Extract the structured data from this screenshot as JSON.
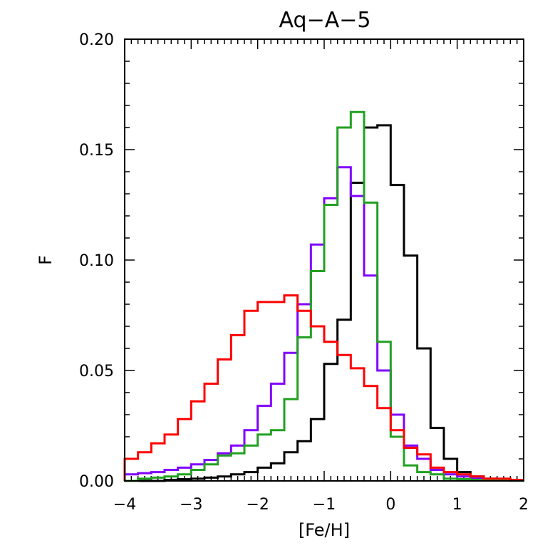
{
  "chart_data": {
    "type": "histogram",
    "title": "Aq−A−5",
    "xlabel": "[Fe/H]",
    "ylabel": "F",
    "xlim": [
      -4,
      2
    ],
    "ylim": [
      0,
      0.2
    ],
    "x_ticks": [
      -4,
      -3,
      -2,
      -1,
      0,
      1,
      2
    ],
    "x_tick_labels": [
      "−4",
      "−3",
      "−2",
      "−1",
      "0",
      "1",
      "2"
    ],
    "y_ticks": [
      0,
      0.05,
      0.1,
      0.15,
      0.2
    ],
    "y_tick_labels": [
      "0.00",
      "0.05",
      "0.10",
      "0.15",
      "0.20"
    ],
    "x_minor_step": 0.1,
    "y_minor_step": 0.01,
    "bin_edges": [
      -4.0,
      -3.8,
      -3.6,
      -3.4,
      -3.2,
      -3.0,
      -2.8,
      -2.6,
      -2.4,
      -2.2,
      -2.0,
      -1.8,
      -1.6,
      -1.4,
      -1.2,
      -1.0,
      -0.8,
      -0.6,
      -0.4,
      -0.2,
      0.0,
      0.2,
      0.4,
      0.6,
      0.8,
      1.0,
      1.2,
      1.4,
      1.6,
      1.8,
      2.0
    ],
    "series": [
      {
        "name": "black",
        "color": "#000000",
        "values": [
          0.0,
          0.0,
          0.0,
          0.0005,
          0.0008,
          0.001,
          0.0015,
          0.002,
          0.003,
          0.004,
          0.006,
          0.008,
          0.013,
          0.018,
          0.028,
          0.053,
          0.073,
          0.135,
          0.16,
          0.161,
          0.134,
          0.102,
          0.06,
          0.024,
          0.01,
          0.004,
          0.002,
          0.001,
          0.0005,
          0.0003
        ]
      },
      {
        "name": "purple",
        "color": "#8000ff",
        "values": [
          0.003,
          0.0035,
          0.004,
          0.005,
          0.006,
          0.0075,
          0.0095,
          0.0125,
          0.016,
          0.023,
          0.034,
          0.044,
          0.058,
          0.08,
          0.107,
          0.128,
          0.142,
          0.129,
          0.093,
          0.05,
          0.03,
          0.016,
          0.01,
          0.005,
          0.003,
          0.002,
          0.001,
          0.0005,
          0.0003,
          0.0002
        ]
      },
      {
        "name": "green",
        "color": "#22a022",
        "values": [
          0.0,
          0.001,
          0.0015,
          0.002,
          0.003,
          0.005,
          0.0075,
          0.0115,
          0.0125,
          0.016,
          0.021,
          0.023,
          0.037,
          0.065,
          0.095,
          0.125,
          0.16,
          0.167,
          0.126,
          0.063,
          0.02,
          0.007,
          0.004,
          0.003,
          0.001,
          0.0008,
          0.0005,
          0.0003,
          0.0002,
          0.0001
        ]
      },
      {
        "name": "red",
        "color": "#ff0000",
        "values": [
          0.01,
          0.013,
          0.017,
          0.021,
          0.028,
          0.036,
          0.044,
          0.055,
          0.066,
          0.077,
          0.081,
          0.081,
          0.084,
          0.077,
          0.07,
          0.063,
          0.057,
          0.051,
          0.043,
          0.033,
          0.023,
          0.015,
          0.012,
          0.006,
          0.004,
          0.003,
          0.002,
          0.001,
          0.001,
          0.0005
        ]
      }
    ]
  }
}
